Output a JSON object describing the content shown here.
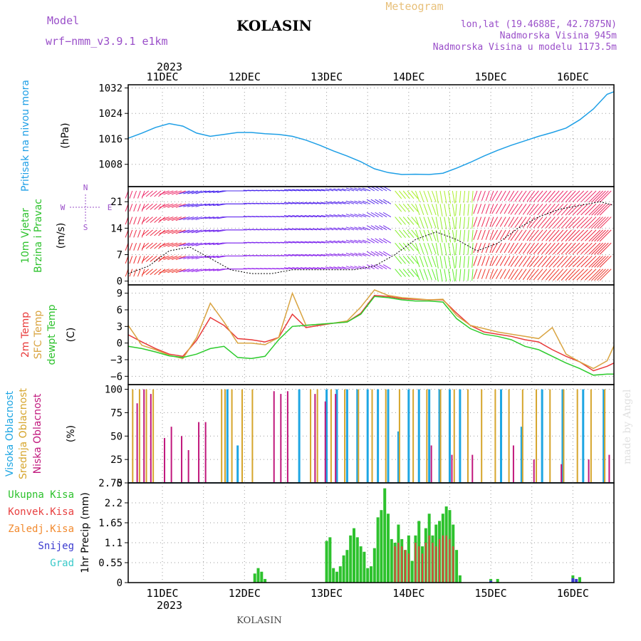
{
  "header": {
    "model_label": "Model",
    "model_name": "wrf−nmm_v3.9.1  e1km",
    "station": "KOLASIN",
    "product": "Meteogram",
    "lonlat": "lon,lat (19.4688E, 42.7875N)",
    "elevation": "Nadmorska Visina 945m",
    "model_elevation": "Nadmorska Visina u modelu 1173.5m",
    "footer_station": "KOLASIN",
    "credit": "made by Angel"
  },
  "colors": {
    "pressure": "#1E9FE6",
    "temp2m": "#E83A3A",
    "sfc": "#D9A441",
    "dewpt": "#2CCB2C",
    "cloud_high": "#1EA6E3",
    "cloud_mid": "#D6A52C",
    "cloud_low": "#C0177C",
    "precip_total": "#2DC22D",
    "precip_conv": "#E84040",
    "precip_frz": "#F28A2E",
    "precip_snow": "#3A3ACF",
    "precip_grad": "#39C9C9",
    "title": "#9A4FC9",
    "meteogram": "#E8C07A"
  },
  "time_axis": {
    "year": "2023",
    "days": [
      "11DEC",
      "12DEC",
      "13DEC",
      "14DEC",
      "15DEC",
      "16DEC"
    ],
    "start": "2023-12-10T14:00",
    "end": "2023-12-16T12:00"
  },
  "chart_data": [
    {
      "type": "line",
      "panel": "pressure",
      "label_lines": [
        "Pritisak na nivou mora"
      ],
      "unit": "(hPa)",
      "ylim": [
        1001,
        1033
      ],
      "yticks": [
        "1032",
        "1024",
        "1016",
        "1008"
      ],
      "ytick_values": [
        1032,
        1024,
        1016,
        1008
      ],
      "series": [
        {
          "name": "Pritisak na nivou mora",
          "x": [
            "2023-12-10T14:00",
            "2023-12-10T18:00",
            "2023-12-10T22:00",
            "2023-12-11T02:00",
            "2023-12-11T06:00",
            "2023-12-11T10:00",
            "2023-12-11T14:00",
            "2023-12-11T18:00",
            "2023-12-11T22:00",
            "2023-12-12T02:00",
            "2023-12-12T06:00",
            "2023-12-12T10:00",
            "2023-12-12T14:00",
            "2023-12-12T18:00",
            "2023-12-12T22:00",
            "2023-12-13T02:00",
            "2023-12-13T06:00",
            "2023-12-13T10:00",
            "2023-12-13T14:00",
            "2023-12-13T18:00",
            "2023-12-13T22:00",
            "2023-12-14T02:00",
            "2023-12-14T06:00",
            "2023-12-14T10:00",
            "2023-12-14T14:00",
            "2023-12-14T18:00",
            "2023-12-14T22:00",
            "2023-12-15T02:00",
            "2023-12-15T06:00",
            "2023-12-15T10:00",
            "2023-12-15T14:00",
            "2023-12-15T18:00",
            "2023-12-15T22:00",
            "2023-12-16T02:00",
            "2023-12-16T06:00",
            "2023-12-16T10:00",
            "2023-12-16T12:00"
          ],
          "y": [
            1016.2,
            1017.8,
            1019.6,
            1020.8,
            1020.0,
            1017.8,
            1016.8,
            1017.4,
            1018.0,
            1018.0,
            1017.6,
            1017.4,
            1016.8,
            1015.6,
            1014.0,
            1012.2,
            1010.6,
            1008.8,
            1006.6,
            1005.4,
            1004.8,
            1004.9,
            1004.8,
            1005.2,
            1006.8,
            1008.6,
            1010.6,
            1012.4,
            1014.0,
            1015.4,
            1016.8,
            1018.0,
            1019.4,
            1022.0,
            1025.4,
            1030.0,
            1030.8
          ]
        }
      ]
    },
    {
      "type": "line",
      "panel": "wind",
      "label_lines": [
        "10m Vjetar",
        "Brzina i Pravac"
      ],
      "unit": "(m/s)",
      "compass": [
        "N",
        "E",
        "S",
        "W"
      ],
      "ylim": [
        -1,
        25
      ],
      "yticks": [
        "21",
        "14",
        "7",
        "0"
      ],
      "ytick_values": [
        21,
        14,
        7,
        0
      ],
      "series": [
        {
          "name": "10m Vjetar",
          "x": [
            "2023-12-10T14:00",
            "2023-12-10T20:00",
            "2023-12-11T02:00",
            "2023-12-11T08:00",
            "2023-12-11T14:00",
            "2023-12-11T20:00",
            "2023-12-12T02:00",
            "2023-12-12T08:00",
            "2023-12-12T14:00",
            "2023-12-12T20:00",
            "2023-12-13T02:00",
            "2023-12-13T08:00",
            "2023-12-13T14:00",
            "2023-12-13T20:00",
            "2023-12-14T02:00",
            "2023-12-14T08:00",
            "2023-12-14T14:00",
            "2023-12-14T20:00",
            "2023-12-15T02:00",
            "2023-12-15T08:00",
            "2023-12-15T14:00",
            "2023-12-15T20:00",
            "2023-12-16T02:00",
            "2023-12-16T08:00",
            "2023-12-16T12:00"
          ],
          "y": [
            2,
            4,
            8,
            9,
            6,
            3,
            2,
            2,
            3,
            3,
            3,
            3,
            4,
            7,
            11,
            13,
            11,
            8,
            10,
            14,
            17,
            19,
            20,
            21,
            20
          ],
          "dir": [
            200,
            230,
            250,
            255,
            260,
            270,
            275,
            275,
            280,
            280,
            285,
            290,
            300,
            140,
            160,
            170,
            185,
            200,
            210,
            215,
            220,
            222,
            225,
            225,
            228
          ]
        }
      ]
    },
    {
      "type": "line",
      "panel": "temperature",
      "label_lines": [
        "2m Temp",
        "SFC Temp",
        "dewpt Temp"
      ],
      "unit": "(C)",
      "ylim": [
        -7.5,
        10.5
      ],
      "yticks": [
        "9",
        "6",
        "3",
        "0",
        "−3",
        "−6"
      ],
      "ytick_values": [
        9,
        6,
        3,
        0,
        -3,
        -6
      ],
      "x": [
        "2023-12-10T14:00",
        "2023-12-10T18:00",
        "2023-12-10T22:00",
        "2023-12-11T02:00",
        "2023-12-11T06:00",
        "2023-12-11T10:00",
        "2023-12-11T14:00",
        "2023-12-11T18:00",
        "2023-12-11T22:00",
        "2023-12-12T02:00",
        "2023-12-12T06:00",
        "2023-12-12T10:00",
        "2023-12-12T14:00",
        "2023-12-12T18:00",
        "2023-12-12T22:00",
        "2023-12-13T02:00",
        "2023-12-13T06:00",
        "2023-12-13T10:00",
        "2023-12-13T14:00",
        "2023-12-13T18:00",
        "2023-12-13T22:00",
        "2023-12-14T02:00",
        "2023-12-14T06:00",
        "2023-12-14T10:00",
        "2023-12-14T14:00",
        "2023-12-14T18:00",
        "2023-12-14T22:00",
        "2023-12-15T02:00",
        "2023-12-15T06:00",
        "2023-12-15T10:00",
        "2023-12-15T14:00",
        "2023-12-15T18:00",
        "2023-12-15T22:00",
        "2023-12-16T02:00",
        "2023-12-16T06:00",
        "2023-12-16T10:00",
        "2023-12-16T12:00"
      ],
      "series": [
        {
          "name": "2m Temp",
          "y": [
            1.5,
            0.2,
            -1.0,
            -2.0,
            -2.4,
            0.5,
            4.6,
            3.2,
            0.8,
            0.6,
            0.2,
            1.0,
            5.2,
            2.8,
            3.2,
            3.6,
            3.8,
            5.4,
            8.6,
            8.4,
            8.0,
            7.9,
            7.8,
            7.8,
            5.4,
            3.2,
            2.0,
            1.6,
            1.2,
            0.6,
            0.2,
            -1.2,
            -2.4,
            -3.4,
            -5.0,
            -4.2,
            -3.6
          ]
        },
        {
          "name": "SFC Temp",
          "y": [
            3.2,
            -0.4,
            -1.2,
            -2.2,
            -2.8,
            1.0,
            7.2,
            3.8,
            0.0,
            0.0,
            -0.3,
            1.0,
            9.0,
            3.2,
            3.4,
            3.6,
            4.0,
            6.5,
            9.6,
            8.6,
            8.2,
            8.0,
            7.8,
            7.9,
            5.0,
            3.2,
            2.6,
            2.0,
            1.6,
            1.2,
            0.8,
            2.8,
            -2.0,
            -3.4,
            -4.6,
            -3.2,
            -0.5
          ]
        },
        {
          "name": "dewpt Temp",
          "y": [
            -0.6,
            -1.0,
            -1.6,
            -2.3,
            -2.6,
            -2.0,
            -1.0,
            -0.6,
            -2.6,
            -2.8,
            -2.4,
            0.6,
            3.0,
            3.2,
            3.4,
            3.6,
            3.8,
            5.2,
            8.4,
            8.2,
            7.8,
            7.6,
            7.6,
            7.4,
            4.4,
            2.6,
            1.6,
            1.2,
            0.6,
            -0.6,
            -1.2,
            -2.4,
            -3.6,
            -4.6,
            -5.8,
            -5.6,
            -5.6
          ]
        }
      ]
    },
    {
      "type": "bar",
      "panel": "clouds",
      "label_lines": [
        "Visoka Oblacnost",
        "Srednja Oblacnost",
        "Niska Oblacnost"
      ],
      "unit": "(%)",
      "ylim": [
        0,
        105
      ],
      "yticks": [
        "100",
        "75",
        "50",
        "25",
        "0"
      ],
      "ytick_values": [
        100,
        75,
        50,
        25,
        0
      ],
      "series": [
        {
          "name": "Visoka Oblacnost",
          "x": [
            "2023-12-11T19:00",
            "2023-12-11T22:00",
            "2023-12-12T16:00",
            "2023-12-13T00:00",
            "2023-12-13T03:00",
            "2023-12-13T06:00",
            "2023-12-13T09:00",
            "2023-12-13T12:00",
            "2023-12-13T15:00",
            "2023-12-13T18:00",
            "2023-12-13T21:00",
            "2023-12-14T00:00",
            "2023-12-14T03:00",
            "2023-12-14T06:00",
            "2023-12-14T09:00",
            "2023-12-14T12:00",
            "2023-12-14T15:00",
            "2023-12-15T03:00",
            "2023-12-15T09:00",
            "2023-12-15T15:00",
            "2023-12-15T21:00",
            "2023-12-16T03:00",
            "2023-12-16T09:00"
          ],
          "values": [
            100,
            40,
            100,
            100,
            100,
            100,
            100,
            100,
            100,
            100,
            55,
            100,
            100,
            100,
            100,
            100,
            100,
            100,
            60,
            100,
            100,
            100,
            100
          ]
        },
        {
          "name": "Srednja Oblacnost",
          "x": [
            "2023-12-10T15:00",
            "2023-12-10T17:00",
            "2023-12-10T19:00",
            "2023-12-10T21:00",
            "2023-12-11T17:00",
            "2023-12-11T18:00",
            "2023-12-11T20:00",
            "2023-12-11T23:00",
            "2023-12-12T02:00",
            "2023-12-12T19:00",
            "2023-12-12T21:00",
            "2023-12-13T01:00",
            "2023-12-13T05:00",
            "2023-12-13T09:00",
            "2023-12-13T13:00",
            "2023-12-13T17:00",
            "2023-12-13T21:00",
            "2023-12-14T01:00",
            "2023-12-14T05:00",
            "2023-12-14T09:00",
            "2023-12-14T13:00",
            "2023-12-14T17:00",
            "2023-12-14T21:00",
            "2023-12-15T01:00",
            "2023-12-15T05:00",
            "2023-12-15T09:00",
            "2023-12-15T13:00",
            "2023-12-15T17:00",
            "2023-12-15T21:00",
            "2023-12-16T01:00",
            "2023-12-16T05:00",
            "2023-12-16T09:00"
          ],
          "values": [
            100,
            100,
            100,
            100,
            100,
            100,
            100,
            100,
            100,
            100,
            100,
            100,
            100,
            100,
            100,
            100,
            100,
            100,
            100,
            100,
            100,
            100,
            100,
            100,
            100,
            100,
            100,
            100,
            100,
            100,
            100,
            100
          ]
        },
        {
          "name": "Niska Oblacnost",
          "x": [
            "2023-12-10T16:00",
            "2023-12-10T18:00",
            "2023-12-10T20:00",
            "2023-12-11T00:00",
            "2023-12-11T02:00",
            "2023-12-11T05:00",
            "2023-12-11T07:00",
            "2023-12-11T10:00",
            "2023-12-11T12:00",
            "2023-12-12T08:00",
            "2023-12-12T10:00",
            "2023-12-12T12:00",
            "2023-12-12T20:00",
            "2023-12-12T23:00",
            "2023-12-13T02:00",
            "2023-12-14T06:00",
            "2023-12-14T12:00",
            "2023-12-14T18:00",
            "2023-12-15T06:00",
            "2023-12-15T12:00",
            "2023-12-15T20:00",
            "2023-12-16T04:00",
            "2023-12-16T10:00"
          ],
          "values": [
            85,
            100,
            95,
            48,
            60,
            50,
            35,
            65,
            65,
            98,
            95,
            98,
            95,
            87,
            95,
            40,
            30,
            30,
            40,
            25,
            20,
            25,
            30
          ]
        }
      ]
    },
    {
      "type": "bar",
      "panel": "precipitation",
      "label_lines": [
        "Ukupna Kisa",
        "Konvek.Kisa",
        "Zaledj.Kisa",
        "Snijeg",
        "Grad"
      ],
      "unit": "1hr Precip (mm)",
      "ylim": [
        0,
        2.75
      ],
      "yticks": [
        "2.75",
        "2.2",
        "1.65",
        "1.1",
        "0.55",
        "0"
      ],
      "ytick_values": [
        2.75,
        2.2,
        1.65,
        1.1,
        0.55,
        0
      ],
      "series": [
        {
          "name": "Ukupna Kisa",
          "x": [
            "2023-12-12T03:00",
            "2023-12-12T04:00",
            "2023-12-12T05:00",
            "2023-12-12T06:00",
            "2023-12-13T00:00",
            "2023-12-13T01:00",
            "2023-12-13T02:00",
            "2023-12-13T03:00",
            "2023-12-13T04:00",
            "2023-12-13T05:00",
            "2023-12-13T06:00",
            "2023-12-13T07:00",
            "2023-12-13T08:00",
            "2023-12-13T09:00",
            "2023-12-13T10:00",
            "2023-12-13T11:00",
            "2023-12-13T12:00",
            "2023-12-13T13:00",
            "2023-12-13T14:00",
            "2023-12-13T15:00",
            "2023-12-13T16:00",
            "2023-12-13T17:00",
            "2023-12-13T18:00",
            "2023-12-13T19:00",
            "2023-12-13T20:00",
            "2023-12-13T21:00",
            "2023-12-13T22:00",
            "2023-12-13T23:00",
            "2023-12-14T00:00",
            "2023-12-14T01:00",
            "2023-12-14T02:00",
            "2023-12-14T03:00",
            "2023-12-14T04:00",
            "2023-12-14T05:00",
            "2023-12-14T06:00",
            "2023-12-14T07:00",
            "2023-12-14T08:00",
            "2023-12-14T09:00",
            "2023-12-14T10:00",
            "2023-12-14T11:00",
            "2023-12-14T12:00",
            "2023-12-14T13:00",
            "2023-12-14T14:00",
            "2023-12-14T15:00",
            "2023-12-15T00:00",
            "2023-12-15T02:00",
            "2023-12-16T00:00",
            "2023-12-16T02:00"
          ],
          "values": [
            0.25,
            0.4,
            0.3,
            0.1,
            1.15,
            1.25,
            0.4,
            0.3,
            0.45,
            0.75,
            0.9,
            1.3,
            1.5,
            1.25,
            1.0,
            0.85,
            0.4,
            0.45,
            0.95,
            1.8,
            2.0,
            2.6,
            1.9,
            1.2,
            1.1,
            1.6,
            1.2,
            0.9,
            1.3,
            0.6,
            1.3,
            1.7,
            1.0,
            1.5,
            1.9,
            1.3,
            1.6,
            1.7,
            1.9,
            2.1,
            2.0,
            1.6,
            0.9,
            0.2,
            0.1,
            0.1,
            0.2,
            0.15
          ]
        },
        {
          "name": "Konvek.Kisa",
          "x": [
            "2023-12-13T20:00",
            "2023-12-13T21:00",
            "2023-12-13T22:00",
            "2023-12-13T23:00",
            "2023-12-14T00:00",
            "2023-12-14T02:00",
            "2023-12-14T03:00",
            "2023-12-14T04:00",
            "2023-12-14T05:00",
            "2023-12-14T06:00",
            "2023-12-14T07:00",
            "2023-12-14T08:00",
            "2023-12-14T09:00",
            "2023-12-14T10:00",
            "2023-12-14T11:00",
            "2023-12-14T12:00",
            "2023-12-14T13:00"
          ],
          "values": [
            1.0,
            1.1,
            1.0,
            0.9,
            0.8,
            1.1,
            1.0,
            0.8,
            1.1,
            1.3,
            1.1,
            1.0,
            1.2,
            1.3,
            1.3,
            1.2,
            1.0
          ]
        },
        {
          "name": "Snijeg",
          "x": [
            "2023-12-15T00:00",
            "2023-12-16T00:00",
            "2023-12-16T01:00"
          ],
          "values": [
            0.05,
            0.12,
            0.1
          ]
        }
      ]
    }
  ]
}
